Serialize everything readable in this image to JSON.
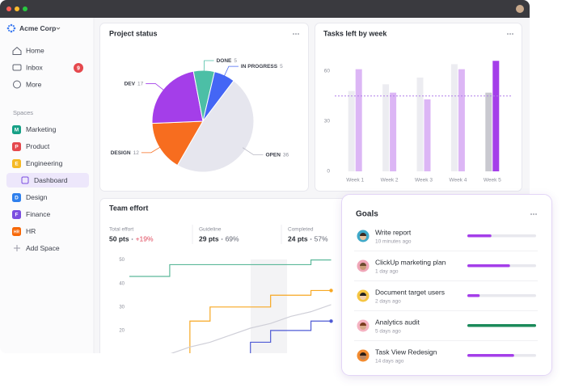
{
  "window": {
    "workspace": "Acme Corp"
  },
  "sidebar": {
    "nav": [
      {
        "label": "Home"
      },
      {
        "label": "Inbox",
        "badge": 9
      },
      {
        "label": "More"
      }
    ],
    "spaces_heading": "Spaces",
    "spaces": [
      {
        "initial": "M",
        "label": "Marketing",
        "color": "#17a086"
      },
      {
        "initial": "P",
        "label": "Product",
        "color": "#e5484d"
      },
      {
        "initial": "E",
        "label": "Engineering",
        "color": "#f5b924"
      },
      {
        "initial": "D",
        "label": "Design",
        "color": "#2f80ed"
      },
      {
        "initial": "F",
        "label": "Finance",
        "color": "#7b4ee0"
      },
      {
        "initial": "HR",
        "label": "HR",
        "color": "#f76808"
      }
    ],
    "active_view": "Dashboard",
    "add_space": "Add Space"
  },
  "chart_data": [
    {
      "type": "pie",
      "title": "Project status",
      "categories": [
        "DESIGN",
        "DEV",
        "DONE",
        "IN PROGRESS",
        "OPEN"
      ],
      "values": [
        12,
        17,
        5,
        5,
        36
      ],
      "colors": [
        "#f76d1f",
        "#a43ee9",
        "#4cbfa6",
        "#4466f5",
        "#e6e6ee"
      ]
    },
    {
      "type": "bar",
      "title": "Tasks left by week",
      "categories": [
        "Week 1",
        "Week 2",
        "Week 3",
        "Week 4",
        "Week 5"
      ],
      "series": [
        {
          "values": [
            48,
            52,
            56,
            64,
            47
          ],
          "colors": [
            "#ececf1",
            "#ececf1",
            "#ececf1",
            "#ececf1",
            "#c9c9d0"
          ]
        },
        {
          "values": [
            61,
            47,
            43,
            61,
            66
          ],
          "colors": [
            "#dcb6f5",
            "#dcb6f5",
            "#dcb6f5",
            "#dcb6f5",
            "#a43ee9"
          ]
        }
      ],
      "reference_line": 45,
      "reference_color": "#b07de8",
      "ylim": [
        0,
        70
      ],
      "yticks": [
        0,
        30,
        60
      ],
      "grid": false
    },
    {
      "type": "line",
      "title": "Team effort",
      "stats": [
        {
          "label": "Total effort",
          "value": "50 pts",
          "change": "+19%",
          "change_color": "#e0475b"
        },
        {
          "label": "Guideline",
          "value": "29 pts",
          "change": "69%",
          "change_color": "#5f6370"
        },
        {
          "label": "Completed",
          "value": "24 pts",
          "change": "57%",
          "change_color": "#5f6370"
        }
      ],
      "x": [
        0,
        1,
        2,
        3,
        4,
        5,
        6,
        7,
        8,
        9,
        10
      ],
      "xlim": [
        0,
        10.5
      ],
      "ylim": [
        10,
        54
      ],
      "yticks": [
        20,
        30,
        40,
        50
      ],
      "series": [
        {
          "color": "#5cb89a",
          "step": true,
          "end_marker": false,
          "values": [
            43,
            43,
            48,
            48,
            48,
            48,
            48,
            48,
            48,
            50,
            50
          ]
        },
        {
          "color": "#f7a823",
          "step": true,
          "end_marker": true,
          "values": [
            null,
            null,
            10,
            24,
            30,
            30,
            30,
            35,
            35,
            37,
            37
          ]
        },
        {
          "color": "#cfcfd8",
          "step": false,
          "end_marker": false,
          "values": [
            null,
            null,
            10,
            13,
            15,
            18,
            21,
            23,
            26,
            28,
            31
          ]
        },
        {
          "color": "#4f5bd5",
          "step": true,
          "end_marker": true,
          "values": [
            null,
            null,
            null,
            null,
            null,
            10,
            15,
            20,
            20,
            24,
            24
          ]
        }
      ]
    }
  ],
  "goals": {
    "title": "Goals",
    "items": [
      {
        "name": "Write report",
        "time": "10 minutes ago",
        "progress": 35,
        "color": "#a43ee9"
      },
      {
        "name": "ClickUp marketing plan",
        "time": "1 day ago",
        "progress": 62,
        "color": "#a43ee9"
      },
      {
        "name": "Document target users",
        "time": "2 days ago",
        "progress": 18,
        "color": "#a43ee9"
      },
      {
        "name": "Analytics audit",
        "time": "5 days ago",
        "progress": 100,
        "color": "#1b8a5a"
      },
      {
        "name": "Task View Redesign",
        "time": "14 days ago",
        "progress": 68,
        "color": "#a43ee9"
      }
    ]
  }
}
